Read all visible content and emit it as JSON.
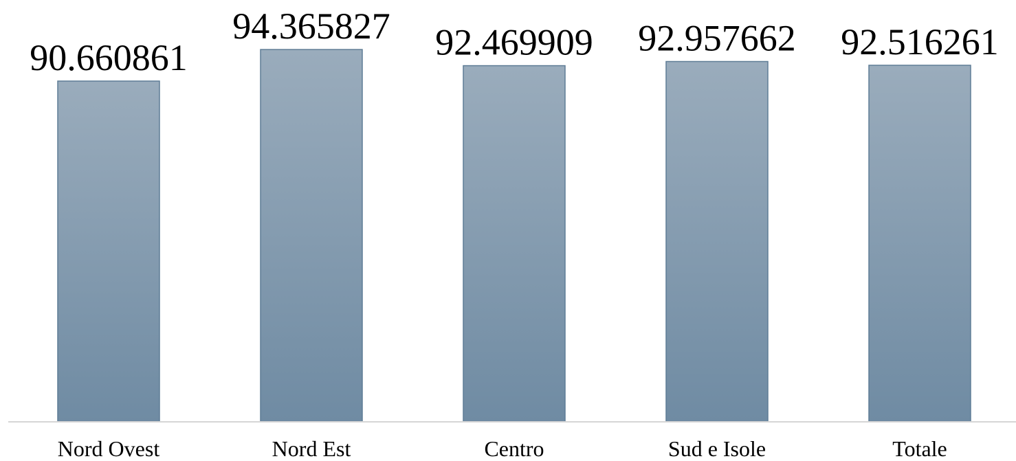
{
  "chart_data": {
    "type": "bar",
    "categories": [
      "Nord Ovest",
      "Nord Est",
      "Centro",
      "Sud e Isole",
      "Totale"
    ],
    "values": [
      90.660861,
      94.365827,
      92.469909,
      92.957662,
      92.516261
    ],
    "data_labels": [
      "90.660861",
      "94.365827",
      "92.469909",
      "92.957662",
      "92.516261"
    ],
    "title": "",
    "xlabel": "",
    "ylabel": "",
    "ylim": [
      0,
      100
    ],
    "grid": false,
    "legend": "none",
    "colors": {
      "bar_top": "#9aacbc",
      "bar_bottom": "#6f8ba3",
      "bar_stroke": "#5f7d96",
      "baseline": "#d6d6d6"
    }
  }
}
